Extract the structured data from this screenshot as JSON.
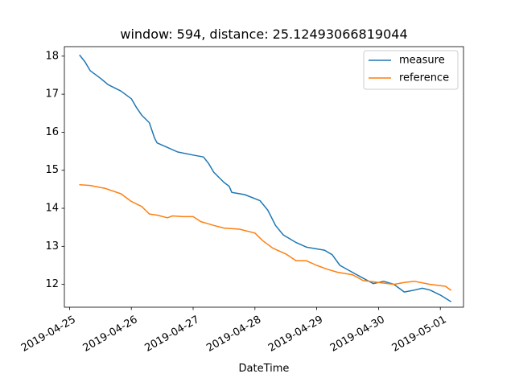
{
  "chart_data": {
    "type": "line",
    "title": "window: 594, distance: 25.12493066819044",
    "xlabel": "DateTime",
    "ylabel": "",
    "x_ticks": [
      "2019-04-25",
      "2019-04-26",
      "2019-04-27",
      "2019-04-28",
      "2019-04-29",
      "2019-04-30",
      "2019-05-01"
    ],
    "y_ticks": [
      12,
      13,
      14,
      15,
      16,
      17,
      18
    ],
    "xlim": [
      "2019-04-24T22:00",
      "2019-05-01T09:00"
    ],
    "ylim": [
      11.4,
      18.25
    ],
    "grid": false,
    "legend_position": "top-right",
    "series": [
      {
        "name": "measure",
        "color": "#1f77b4",
        "points": [
          [
            "2019-04-25T04:00",
            18.02
          ],
          [
            "2019-04-25T06:00",
            17.85
          ],
          [
            "2019-04-25T08:00",
            17.62
          ],
          [
            "2019-04-25T12:00",
            17.42
          ],
          [
            "2019-04-25T15:00",
            17.25
          ],
          [
            "2019-04-25T20:00",
            17.08
          ],
          [
            "2019-04-26T00:00",
            16.88
          ],
          [
            "2019-04-26T02:00",
            16.65
          ],
          [
            "2019-04-26T04:00",
            16.45
          ],
          [
            "2019-04-26T07:00",
            16.25
          ],
          [
            "2019-04-26T09:00",
            15.85
          ],
          [
            "2019-04-26T10:00",
            15.72
          ],
          [
            "2019-04-26T14:00",
            15.6
          ],
          [
            "2019-04-26T18:00",
            15.48
          ],
          [
            "2019-04-27T00:00",
            15.4
          ],
          [
            "2019-04-27T04:00",
            15.35
          ],
          [
            "2019-04-27T06:00",
            15.18
          ],
          [
            "2019-04-27T08:00",
            14.95
          ],
          [
            "2019-04-27T12:00",
            14.68
          ],
          [
            "2019-04-27T14:00",
            14.58
          ],
          [
            "2019-04-27T15:00",
            14.42
          ],
          [
            "2019-04-27T20:00",
            14.36
          ],
          [
            "2019-04-28T02:00",
            14.2
          ],
          [
            "2019-04-28T05:00",
            13.95
          ],
          [
            "2019-04-28T08:00",
            13.55
          ],
          [
            "2019-04-28T11:00",
            13.3
          ],
          [
            "2019-04-28T16:00",
            13.1
          ],
          [
            "2019-04-28T20:00",
            12.98
          ],
          [
            "2019-04-29T03:00",
            12.9
          ],
          [
            "2019-04-29T06:00",
            12.78
          ],
          [
            "2019-04-29T09:00",
            12.5
          ],
          [
            "2019-04-29T13:00",
            12.35
          ],
          [
            "2019-04-29T17:00",
            12.2
          ],
          [
            "2019-04-29T22:00",
            12.02
          ],
          [
            "2019-04-30T02:00",
            12.08
          ],
          [
            "2019-04-30T06:00",
            12.0
          ],
          [
            "2019-04-30T08:00",
            11.9
          ],
          [
            "2019-04-30T10:00",
            11.8
          ],
          [
            "2019-04-30T14:00",
            11.85
          ],
          [
            "2019-04-30T17:00",
            11.9
          ],
          [
            "2019-04-30T20:00",
            11.85
          ],
          [
            "2019-05-01T00:00",
            11.72
          ],
          [
            "2019-05-01T04:00",
            11.55
          ]
        ]
      },
      {
        "name": "reference",
        "color": "#ff7f0e",
        "points": [
          [
            "2019-04-25T04:00",
            14.62
          ],
          [
            "2019-04-25T08:00",
            14.6
          ],
          [
            "2019-04-25T14:00",
            14.52
          ],
          [
            "2019-04-25T20:00",
            14.38
          ],
          [
            "2019-04-26T00:00",
            14.18
          ],
          [
            "2019-04-26T04:00",
            14.05
          ],
          [
            "2019-04-26T07:00",
            13.85
          ],
          [
            "2019-04-26T10:00",
            13.82
          ],
          [
            "2019-04-26T14:00",
            13.75
          ],
          [
            "2019-04-26T16:00",
            13.8
          ],
          [
            "2019-04-26T20:00",
            13.78
          ],
          [
            "2019-04-27T00:00",
            13.78
          ],
          [
            "2019-04-27T03:00",
            13.65
          ],
          [
            "2019-04-27T08:00",
            13.55
          ],
          [
            "2019-04-27T12:00",
            13.48
          ],
          [
            "2019-04-27T18:00",
            13.45
          ],
          [
            "2019-04-28T00:00",
            13.35
          ],
          [
            "2019-04-28T03:00",
            13.15
          ],
          [
            "2019-04-28T07:00",
            12.95
          ],
          [
            "2019-04-28T12:00",
            12.8
          ],
          [
            "2019-04-28T16:00",
            12.62
          ],
          [
            "2019-04-28T20:00",
            12.62
          ],
          [
            "2019-04-29T00:00",
            12.5
          ],
          [
            "2019-04-29T04:00",
            12.4
          ],
          [
            "2019-04-29T08:00",
            12.32
          ],
          [
            "2019-04-29T14:00",
            12.25
          ],
          [
            "2019-04-29T18:00",
            12.1
          ],
          [
            "2019-04-30T00:00",
            12.05
          ],
          [
            "2019-04-30T06:00",
            12.0
          ],
          [
            "2019-04-30T10:00",
            12.05
          ],
          [
            "2019-04-30T14:00",
            12.08
          ],
          [
            "2019-04-30T20:00",
            12.0
          ],
          [
            "2019-05-01T02:00",
            11.95
          ],
          [
            "2019-05-01T04:00",
            11.85
          ]
        ]
      }
    ]
  }
}
